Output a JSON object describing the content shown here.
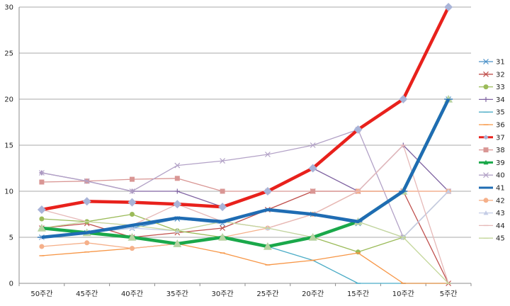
{
  "chart_data": {
    "type": "line",
    "title": "",
    "xlabel": "",
    "ylabel": "",
    "categories": [
      "50주간",
      "45주간",
      "40주간",
      "35주간",
      "30주간",
      "25주간",
      "20주간",
      "15주간",
      "10주간",
      "5주간"
    ],
    "ylim": [
      0,
      30
    ],
    "yticks": [
      0,
      5,
      10,
      15,
      20,
      25,
      30
    ],
    "grid": "horizontal",
    "legend_position": "right",
    "series": [
      {
        "name": "31",
        "color": "#4a90c8",
        "marker": "x",
        "highlight": false,
        "values": [
          5,
          5.5,
          6,
          7,
          6.5,
          8,
          7.5,
          6.5,
          10,
          20
        ]
      },
      {
        "name": "32",
        "color": "#c0504d",
        "marker": "x",
        "highlight": false,
        "values": [
          6,
          6.5,
          5,
          5.5,
          6,
          8,
          10,
          10,
          10,
          0
        ]
      },
      {
        "name": "33",
        "color": "#9bbb59",
        "marker": "circle",
        "highlight": false,
        "values": [
          7,
          6.7,
          7.5,
          5.7,
          5,
          4,
          5,
          3.4,
          5,
          10
        ]
      },
      {
        "name": "34",
        "color": "#8064a2",
        "marker": "plus",
        "highlight": false,
        "values": [
          12,
          11.1,
          10,
          10,
          8.3,
          10,
          12.5,
          10,
          15,
          10
        ]
      },
      {
        "name": "35",
        "color": "#4bacc6",
        "marker": "dash",
        "highlight": false,
        "values": [
          6,
          5.5,
          5,
          4.3,
          5,
          4,
          2.5,
          0,
          0,
          0
        ]
      },
      {
        "name": "36",
        "color": "#f79646",
        "marker": "dash",
        "highlight": false,
        "values": [
          3,
          3.4,
          3.8,
          4.3,
          3.3,
          2,
          2.5,
          3.3,
          0,
          0
        ]
      },
      {
        "name": "37",
        "color": "#e8211c",
        "marker": "star",
        "highlight": true,
        "values": [
          8,
          8.9,
          8.8,
          8.6,
          8.3,
          10,
          12.5,
          16.7,
          20,
          30
        ]
      },
      {
        "name": "38",
        "color": "#d99694",
        "marker": "square",
        "highlight": false,
        "values": [
          11,
          11.1,
          11.3,
          11.4,
          10,
          10,
          10,
          10,
          10,
          10
        ]
      },
      {
        "name": "39",
        "color": "#1aa84a",
        "marker": "triangle",
        "highlight": true,
        "values": [
          6,
          5.5,
          5,
          4.3,
          5,
          4,
          5,
          6.7,
          10,
          20
        ]
      },
      {
        "name": "40",
        "color": "#b3a2c7",
        "marker": "x",
        "highlight": false,
        "values": [
          12,
          11.1,
          10,
          12.8,
          13.3,
          14,
          15,
          16.7,
          5,
          10
        ]
      },
      {
        "name": "41",
        "color": "#1f6cb3",
        "marker": "dash",
        "highlight": true,
        "values": [
          5,
          5.5,
          6.3,
          7.1,
          6.7,
          8,
          7.5,
          6.7,
          10,
          20
        ]
      },
      {
        "name": "42",
        "color": "#f5b08a",
        "marker": "circle",
        "highlight": false,
        "values": [
          4,
          4.4,
          3.8,
          4.3,
          5,
          6,
          7.5,
          10,
          10,
          10
        ]
      },
      {
        "name": "43",
        "color": "#c5cde6",
        "marker": "triangle",
        "highlight": false,
        "values": [
          5,
          5.6,
          6,
          5.7,
          6.7,
          6,
          5,
          6.7,
          5,
          10
        ]
      },
      {
        "name": "44",
        "color": "#e6b9b8",
        "marker": "dash",
        "highlight": false,
        "values": [
          8,
          6.7,
          6.3,
          8.6,
          6.7,
          6,
          7.5,
          10,
          15,
          0
        ]
      },
      {
        "name": "45",
        "color": "#c4d79b",
        "marker": "dash",
        "highlight": false,
        "values": [
          6,
          6.7,
          6.3,
          5.7,
          6.7,
          6,
          5,
          6.7,
          5,
          0
        ]
      }
    ]
  }
}
